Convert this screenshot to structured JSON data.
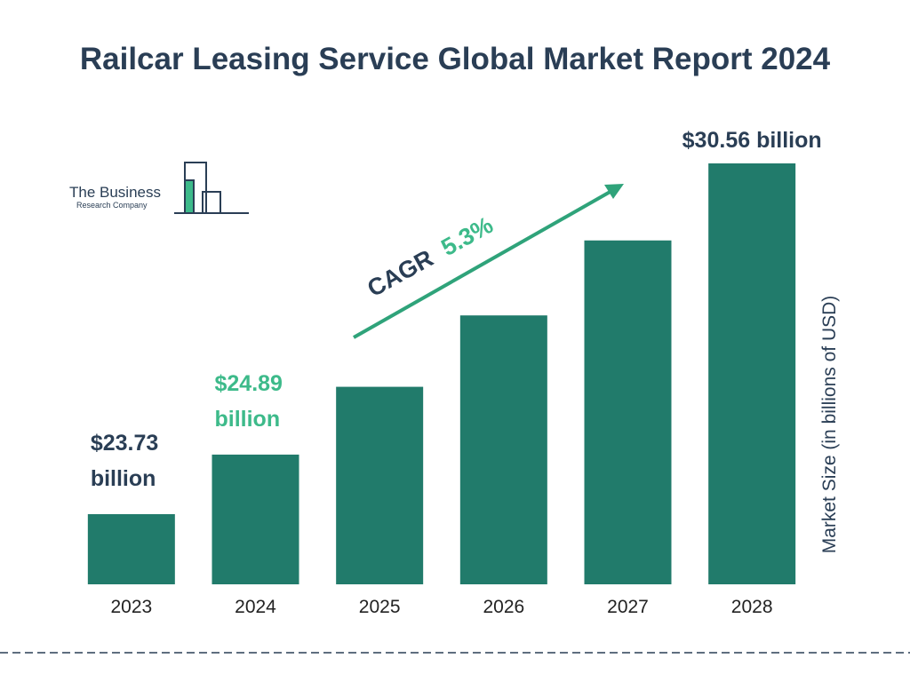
{
  "chart_data": {
    "type": "bar",
    "title": "Railcar Leasing Service Global Market Report 2024",
    "categories": [
      "2023",
      "2024",
      "2025",
      "2026",
      "2027",
      "2028"
    ],
    "values": [
      23.73,
      24.89,
      26.21,
      27.6,
      29.06,
      30.56
    ],
    "value_labels": [
      "$23.73 billion",
      "$24.89 billion",
      null,
      null,
      null,
      "$30.56 billion"
    ],
    "color": "#217b6b",
    "y_label": "Market Size (in billions of USD)",
    "annotation": {
      "label": "CAGR",
      "value": "5.3%"
    },
    "logo": {
      "line1": "The Business",
      "line2": "Research Company"
    }
  }
}
